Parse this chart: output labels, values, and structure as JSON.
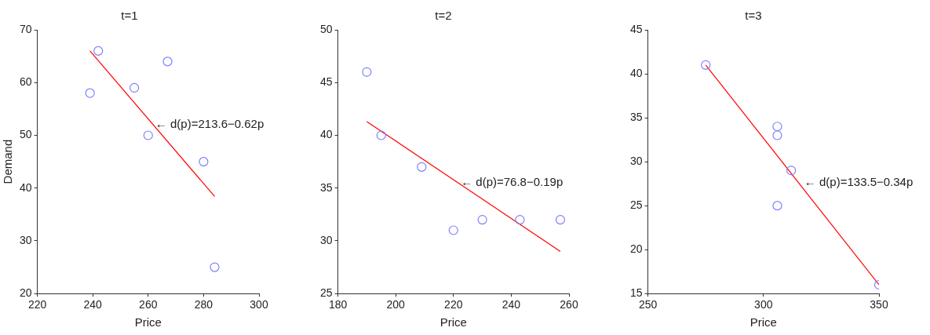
{
  "chart_data": [
    {
      "type": "scatter",
      "title": "t=1",
      "xlabel": "Price",
      "ylabel": "Demand",
      "xlim": [
        220,
        300
      ],
      "xticks": [
        220,
        240,
        260,
        280,
        300
      ],
      "ylim": [
        20,
        70
      ],
      "yticks": [
        20,
        30,
        40,
        50,
        60,
        70
      ],
      "marker": "circle",
      "series": [
        {
          "color": "#7f7fff",
          "x": [
            239,
            242,
            255,
            260,
            267,
            280,
            284
          ],
          "values": [
            58,
            66,
            59,
            50,
            64,
            45,
            25
          ]
        },
        {
          "type": "line",
          "color": "#ff0000",
          "line_style": "solid",
          "marker": "none",
          "x": [
            239,
            284
          ],
          "values": [
            66,
            38.4
          ]
        }
      ],
      "annotations": [
        {
          "text": "← d(p)=213.6−0.62p",
          "x": 262,
          "y": 52
        }
      ]
    },
    {
      "type": "scatter",
      "title": "t=2",
      "xlabel": "Price",
      "xlim": [
        180,
        260
      ],
      "xticks": [
        180,
        200,
        220,
        240,
        260
      ],
      "ylim": [
        25,
        50
      ],
      "yticks": [
        25,
        30,
        35,
        40,
        45,
        50
      ],
      "marker": "circle",
      "series": [
        {
          "color": "#7f7fff",
          "x": [
            190,
            195,
            209,
            220,
            230,
            243,
            257
          ],
          "values": [
            46,
            40,
            37,
            31,
            32,
            32,
            32
          ]
        },
        {
          "type": "line",
          "color": "#ff0000",
          "line_style": "solid",
          "marker": "none",
          "x": [
            190,
            257
          ],
          "values": [
            41.3,
            29
          ]
        }
      ],
      "annotations": [
        {
          "text": "← d(p)=76.8−0.19p",
          "x": 222,
          "y": 35.5
        }
      ]
    },
    {
      "type": "scatter",
      "title": "t=3",
      "xlabel": "Price",
      "xlim": [
        250,
        350
      ],
      "xticks": [
        250,
        300,
        350
      ],
      "ylim": [
        15,
        45
      ],
      "yticks": [
        15,
        20,
        25,
        30,
        35,
        40,
        45
      ],
      "marker": "circle",
      "series": [
        {
          "color": "#7f7fff",
          "x": [
            275,
            306,
            306,
            312,
            306,
            350
          ],
          "values": [
            41,
            34,
            33,
            29,
            25,
            16
          ]
        },
        {
          "type": "line",
          "color": "#ff0000",
          "line_style": "solid",
          "marker": "none",
          "x": [
            275,
            350
          ],
          "values": [
            41,
            16
          ]
        }
      ],
      "annotations": [
        {
          "text": "← d(p)=133.5−0.34p",
          "x": 317,
          "y": 27.6
        }
      ]
    }
  ]
}
